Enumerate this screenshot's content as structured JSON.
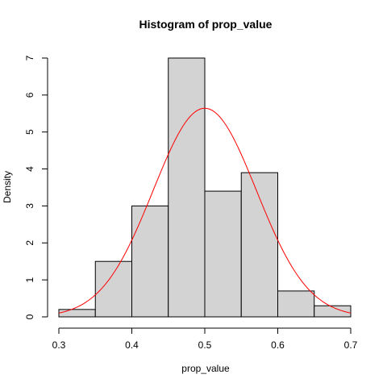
{
  "chart_data": {
    "type": "bar",
    "title": "Histogram of prop_value",
    "xlabel": "prop_value",
    "ylabel": "Density",
    "bins": [
      {
        "from": 0.3,
        "to": 0.35,
        "density": 0.2
      },
      {
        "from": 0.35,
        "to": 0.4,
        "density": 1.5
      },
      {
        "from": 0.4,
        "to": 0.45,
        "density": 3.0
      },
      {
        "from": 0.45,
        "to": 0.5,
        "density": 7.0
      },
      {
        "from": 0.5,
        "to": 0.55,
        "density": 3.4
      },
      {
        "from": 0.55,
        "to": 0.6,
        "density": 3.9
      },
      {
        "from": 0.6,
        "to": 0.65,
        "density": 0.7
      },
      {
        "from": 0.65,
        "to": 0.7,
        "density": 0.3
      }
    ],
    "curve": {
      "type": "normal",
      "mean": 0.5,
      "sd": 0.0707,
      "color": "#ff0000"
    },
    "xticks": [
      "0.3",
      "0.4",
      "0.5",
      "0.6",
      "0.7"
    ],
    "yticks": [
      "0",
      "1",
      "2",
      "3",
      "4",
      "5",
      "6",
      "7"
    ],
    "xlim": [
      0.3,
      0.7
    ],
    "ylim": [
      0,
      7
    ],
    "bar_color": "#d3d3d3",
    "grid": false
  }
}
